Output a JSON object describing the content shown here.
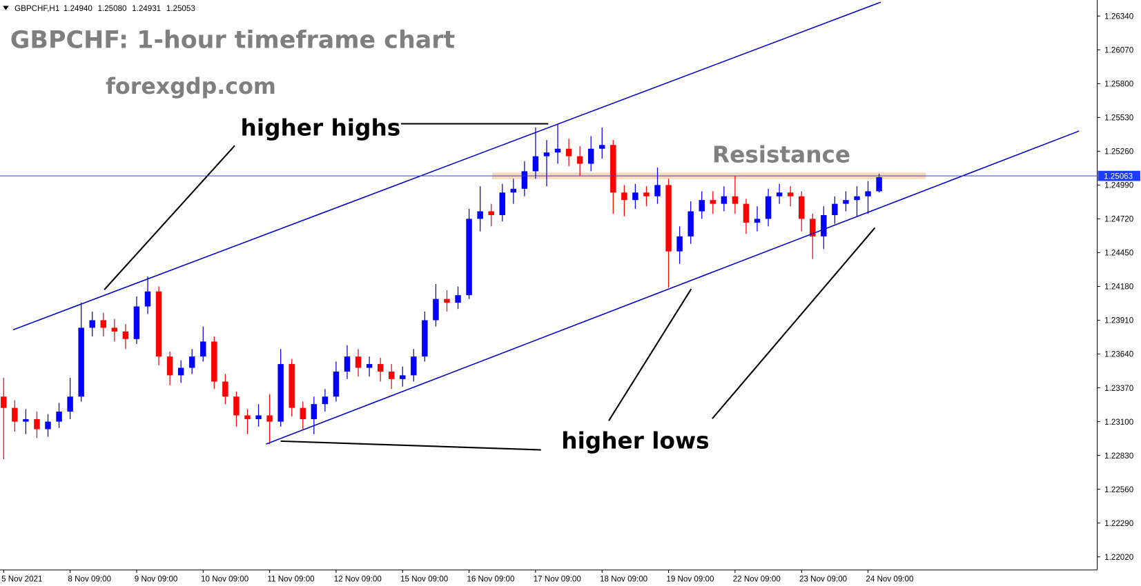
{
  "chart_data": {
    "type": "candlestick",
    "header": "GBPCHF,H1",
    "header_values": [
      "1.24940",
      "1.25080",
      "1.24931",
      "1.25053"
    ],
    "title": "GBPCHF: 1-hour timeframe chart",
    "subtitle": "forexgdp.com",
    "annotations": [
      "higher highs",
      "Resistance",
      "higher lows"
    ],
    "up_color": "#0000ff",
    "down_color": "#ff0000",
    "categories": [
      "5 Nov 2021",
      null,
      null,
      null,
      null,
      null,
      "8 Nov 09:00",
      null,
      null,
      null,
      null,
      null,
      "9 Nov 09:00",
      null,
      null,
      null,
      null,
      null,
      "10 Nov 09:00",
      null,
      null,
      null,
      null,
      null,
      "11 Nov 09:00",
      null,
      null,
      null,
      null,
      null,
      "12 Nov 09:00",
      null,
      null,
      null,
      null,
      null,
      "15 Nov 09:00",
      null,
      null,
      null,
      null,
      null,
      "16 Nov 09:00",
      null,
      null,
      null,
      null,
      null,
      "17 Nov 09:00",
      null,
      null,
      null,
      null,
      null,
      "18 Nov 09:00",
      null,
      null,
      null,
      null,
      null,
      "19 Nov 09:00",
      null,
      null,
      null,
      null,
      null,
      "22 Nov 09:00",
      null,
      null,
      null,
      null,
      null,
      "23 Nov 09:00",
      null,
      null,
      null,
      null,
      null,
      "24 Nov 09:00",
      null
    ],
    "open": [
      1.233,
      1.2321,
      1.231,
      1.2312,
      1.2304,
      1.231,
      1.2318,
      1.233,
      1.2385,
      1.2391,
      1.2385,
      1.2382,
      1.2376,
      1.2402,
      1.2414,
      1.2362,
      1.2347,
      1.2353,
      1.2362,
      1.2374,
      1.2342,
      1.233,
      1.2315,
      1.2312,
      1.2315,
      1.231,
      1.2356,
      1.2321,
      1.2312,
      1.2324,
      1.233,
      1.235,
      1.2362,
      1.2353,
      1.2356,
      1.235,
      1.2344,
      1.2347,
      1.2362,
      1.2391,
      1.2408,
      1.2405,
      1.2411,
      1.2472,
      1.2478,
      1.2475,
      1.2493,
      1.2496,
      1.251,
      1.2522,
      1.2525,
      1.2528,
      1.2522,
      1.2516,
      1.2528,
      1.2531,
      1.2493,
      1.2487,
      1.2493,
      1.249,
      1.2499,
      1.2446,
      1.2458,
      1.2478,
      1.2487,
      1.2484,
      1.249,
      1.2484,
      1.2469,
      1.2472,
      1.249,
      1.2493,
      1.249,
      1.2472,
      1.2458,
      1.2475,
      1.2484,
      1.2487,
      1.249,
      1.2494
    ],
    "high": [
      1.2345,
      1.2327,
      1.232,
      1.2318,
      1.2316,
      1.2325,
      1.2345,
      1.2405,
      1.2398,
      1.2397,
      1.2392,
      1.2388,
      1.241,
      1.2426,
      1.2418,
      1.2366,
      1.2359,
      1.2368,
      1.2386,
      1.2378,
      1.2348,
      1.2334,
      1.232,
      1.2324,
      1.2332,
      1.2368,
      1.236,
      1.2326,
      1.233,
      1.2336,
      1.2358,
      1.2371,
      1.2368,
      1.2362,
      1.2361,
      1.2356,
      1.2354,
      1.2368,
      1.2398,
      1.242,
      1.2415,
      1.2418,
      1.248,
      1.2498,
      1.2484,
      1.25,
      1.2504,
      1.2518,
      1.2545,
      1.2535,
      1.2548,
      1.2536,
      1.253,
      1.2538,
      1.2545,
      1.2535,
      1.2499,
      1.25,
      1.2498,
      1.2513,
      1.2504,
      1.2466,
      1.2486,
      1.2494,
      1.2494,
      1.2498,
      1.2506,
      1.2488,
      1.2482,
      1.2496,
      1.25,
      1.2498,
      1.2494,
      1.2476,
      1.2482,
      1.249,
      1.2494,
      1.2498,
      1.2502,
      1.2508
    ],
    "low": [
      1.228,
      1.2302,
      1.23,
      1.2297,
      1.2298,
      1.2305,
      1.2312,
      1.2326,
      1.2378,
      1.2378,
      1.2374,
      1.2368,
      1.2372,
      1.2396,
      1.2355,
      1.2339,
      1.2341,
      1.2348,
      1.2358,
      1.2336,
      1.2324,
      1.2306,
      1.23,
      1.2306,
      1.2292,
      1.2306,
      1.2314,
      1.2303,
      1.23,
      1.2318,
      1.2326,
      1.2344,
      1.2346,
      1.2346,
      1.2342,
      1.2336,
      1.2338,
      1.2342,
      1.2358,
      1.2386,
      1.2398,
      1.24,
      1.2408,
      1.2462,
      1.2466,
      1.247,
      1.2484,
      1.249,
      1.2504,
      1.2498,
      1.2516,
      1.2514,
      1.2506,
      1.251,
      1.252,
      1.2476,
      1.2474,
      1.248,
      1.2482,
      1.2484,
      1.2417,
      1.2436,
      1.2452,
      1.2472,
      1.2476,
      1.2478,
      1.2476,
      1.246,
      1.2462,
      1.2466,
      1.2484,
      1.2482,
      1.2462,
      1.244,
      1.2448,
      1.2468,
      1.2478,
      1.2474,
      1.2476,
      1.24931
    ],
    "close": [
      1.2321,
      1.231,
      1.2312,
      1.2304,
      1.231,
      1.2318,
      1.233,
      1.2385,
      1.2391,
      1.2385,
      1.2382,
      1.2376,
      1.2402,
      1.2414,
      1.2362,
      1.2347,
      1.2353,
      1.2362,
      1.2374,
      1.2342,
      1.233,
      1.2315,
      1.2312,
      1.2315,
      1.231,
      1.2356,
      1.2321,
      1.2312,
      1.2324,
      1.233,
      1.235,
      1.2362,
      1.2353,
      1.2356,
      1.235,
      1.2344,
      1.2347,
      1.2362,
      1.2391,
      1.2408,
      1.2405,
      1.2411,
      1.2472,
      1.2478,
      1.2475,
      1.2493,
      1.2496,
      1.251,
      1.2522,
      1.2525,
      1.2528,
      1.2522,
      1.2516,
      1.2528,
      1.2531,
      1.2493,
      1.2487,
      1.2493,
      1.249,
      1.2499,
      1.2446,
      1.2458,
      1.2478,
      1.2487,
      1.2484,
      1.249,
      1.2484,
      1.2469,
      1.2472,
      1.249,
      1.2493,
      1.249,
      1.2472,
      1.2458,
      1.2475,
      1.2484,
      1.2487,
      1.249,
      1.2494,
      1.25053
    ],
    "price_line": 1.25063,
    "ylim": [
      1.21915,
      1.26439
    ],
    "yticks": [
      {
        "value": 1.2202,
        "label": "1.22020"
      },
      {
        "value": 1.2229,
        "label": "1.22290"
      },
      {
        "value": 1.2256,
        "label": "1.22560"
      },
      {
        "value": 1.2283,
        "label": "1.22830"
      },
      {
        "value": 1.231,
        "label": "1.23100"
      },
      {
        "value": 1.2337,
        "label": "1.23370"
      },
      {
        "value": 1.2364,
        "label": "1.23640"
      },
      {
        "value": 1.2391,
        "label": "1.23910"
      },
      {
        "value": 1.2418,
        "label": "1.24180"
      },
      {
        "value": 1.2445,
        "label": "1.24450"
      },
      {
        "value": 1.2472,
        "label": "1.24720"
      },
      {
        "value": 1.2499,
        "label": "1.24990"
      },
      {
        "value": 1.2526,
        "label": "1.25260"
      },
      {
        "value": 1.2553,
        "label": "1.25530"
      },
      {
        "value": 1.258,
        "label": "1.25800"
      },
      {
        "value": 1.2607,
        "label": "1.26070"
      },
      {
        "value": 1.2634,
        "label": "1.26340"
      }
    ]
  }
}
